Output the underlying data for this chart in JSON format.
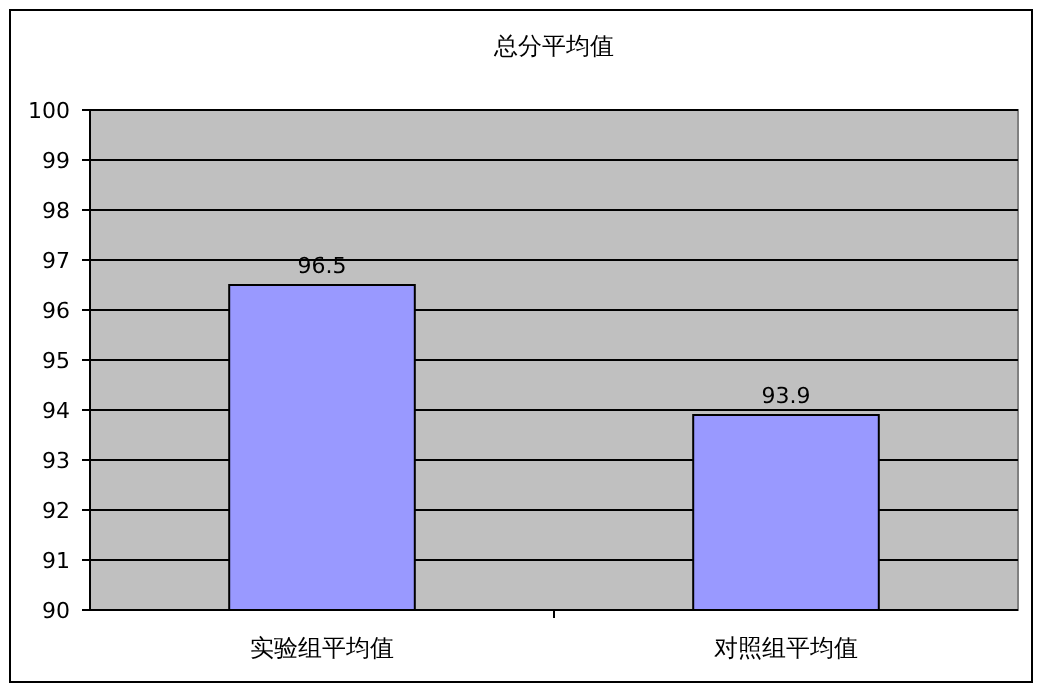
{
  "chart_data": {
    "type": "bar",
    "title": "总分平均值",
    "categories": [
      "实验组平均值",
      "对照组平均值"
    ],
    "values": [
      96.5,
      93.9
    ],
    "color": "#9999ff",
    "ylim": [
      90,
      100
    ],
    "yticks": [
      90,
      91,
      92,
      93,
      94,
      95,
      96,
      97,
      98,
      99,
      100
    ],
    "grid": "y",
    "data_labels": true
  }
}
